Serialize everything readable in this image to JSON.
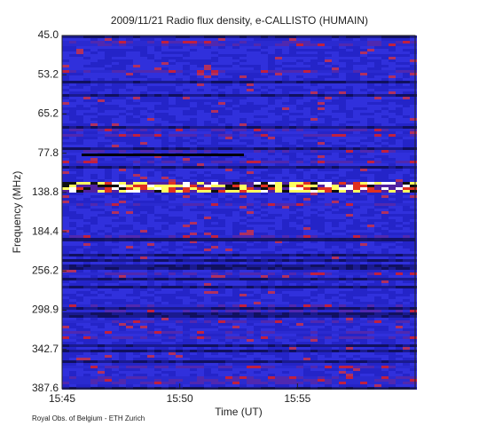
{
  "chart_data": {
    "type": "spectrogram",
    "title": "2009/11/21  Radio flux density, e-CALLISTO (HUMAIN)",
    "xlabel": "Time (UT)",
    "ylabel": "Frequency (MHz)",
    "xlim": [
      "15:45",
      "16:00"
    ],
    "xticks": [
      "15:45",
      "15:50",
      "15:55"
    ],
    "ycategories": [
      "45.0",
      "53.2",
      "65.2",
      "77.8",
      "138.8",
      "184.4",
      "256.2",
      "298.9",
      "342.7",
      "387.6"
    ],
    "footer": "Royal Obs. of Belgium - ETH Zurich"
  }
}
